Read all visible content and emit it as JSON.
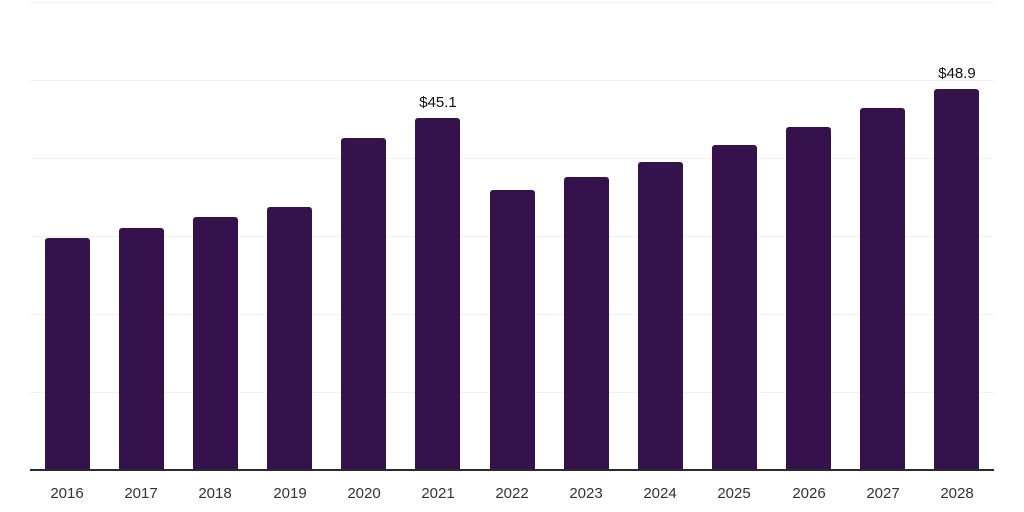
{
  "chart_data": {
    "type": "bar",
    "categories": [
      "2016",
      "2017",
      "2018",
      "2019",
      "2020",
      "2021",
      "2022",
      "2023",
      "2024",
      "2025",
      "2026",
      "2027",
      "2028"
    ],
    "values": [
      29.7,
      31.0,
      32.4,
      33.7,
      42.6,
      45.1,
      35.9,
      37.6,
      39.5,
      41.7,
      44.0,
      46.4,
      48.9
    ],
    "data_labels": {
      "2021": "$45.1",
      "2028": "$48.9"
    },
    "ylim": [
      0,
      60
    ],
    "grid": {
      "show": true,
      "step": 10
    },
    "legend": "none",
    "colors": {
      "bar": "#35124b",
      "gridline": "#f0f0f0",
      "axis_line": "#2b2b2b",
      "data_label": "#111111",
      "tick_label": "#333333",
      "background": "#ffffff"
    }
  }
}
